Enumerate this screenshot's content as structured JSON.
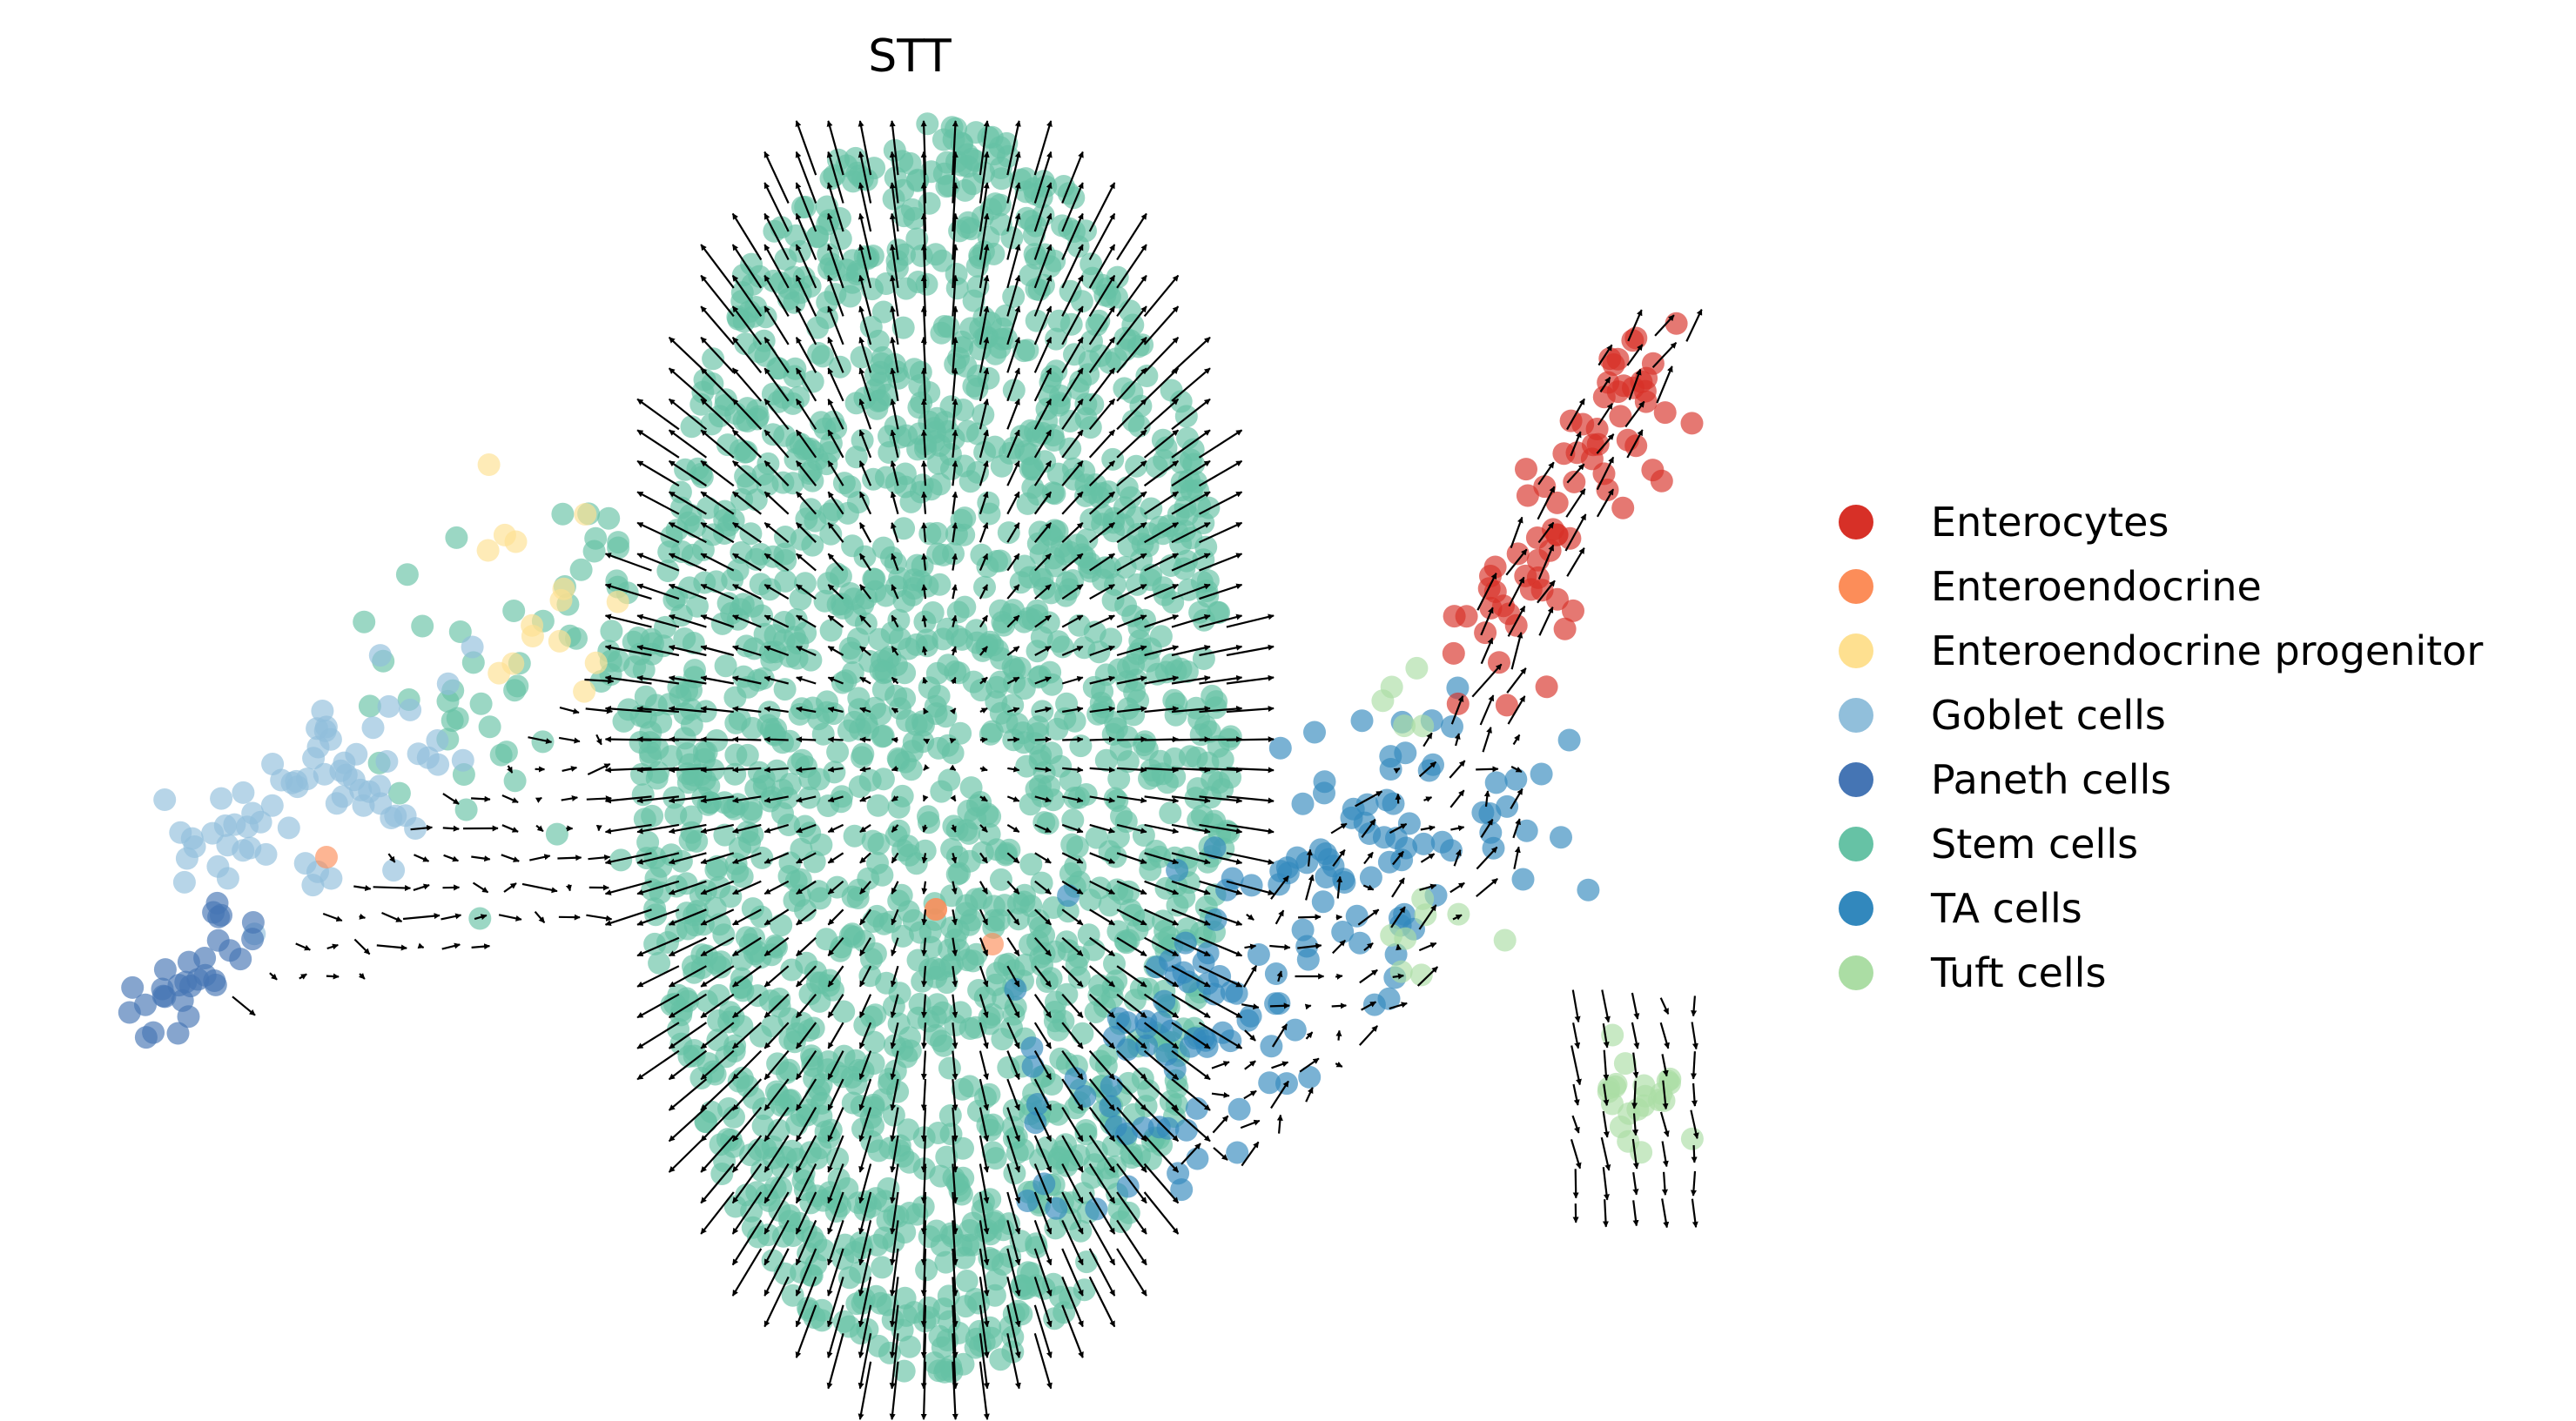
{
  "chart_data": {
    "type": "scatter",
    "title": "STT",
    "xlabel": "",
    "ylabel": "",
    "axes_visible": false,
    "grid": false,
    "legend_placement": "right",
    "overlay": "velocity-arrows",
    "categories": [
      {
        "name": "Enterocytes",
        "color": "#d73027"
      },
      {
        "name": "Enteroendocrine",
        "color": "#fc8d59"
      },
      {
        "name": "Enteroendocrine progenitor",
        "color": "#fee090"
      },
      {
        "name": "Goblet cells",
        "color": "#91bfdb"
      },
      {
        "name": "Paneth cells",
        "color": "#4575b4"
      },
      {
        "name": "Stem cells",
        "color": "#66c2a5"
      },
      {
        "name": "TA cells",
        "color": "#3288bd"
      },
      {
        "name": "Tuft cells",
        "color": "#abdda4"
      }
    ],
    "clusters": [
      {
        "category": "Stem cells",
        "region": "central-blob",
        "approx_points": 1800
      },
      {
        "category": "Stem cells",
        "region": "left-bridge",
        "approx_points": 60
      },
      {
        "category": "Goblet cells",
        "region": "left-arm",
        "approx_points": 70
      },
      {
        "category": "Paneth cells",
        "region": "left-arm-tip",
        "approx_points": 30
      },
      {
        "category": "Enteroendocrine progenitor",
        "region": "left-bridge-top",
        "approx_points": 15
      },
      {
        "category": "Enteroendocrine",
        "region": "scattered",
        "approx_points": 4
      },
      {
        "category": "TA cells",
        "region": "right-lower-arm",
        "approx_points": 150
      },
      {
        "category": "Enterocytes",
        "region": "right-upper-arm",
        "approx_points": 70
      },
      {
        "category": "Tuft cells",
        "region": "right-lower-tip",
        "approx_points": 35
      }
    ]
  }
}
